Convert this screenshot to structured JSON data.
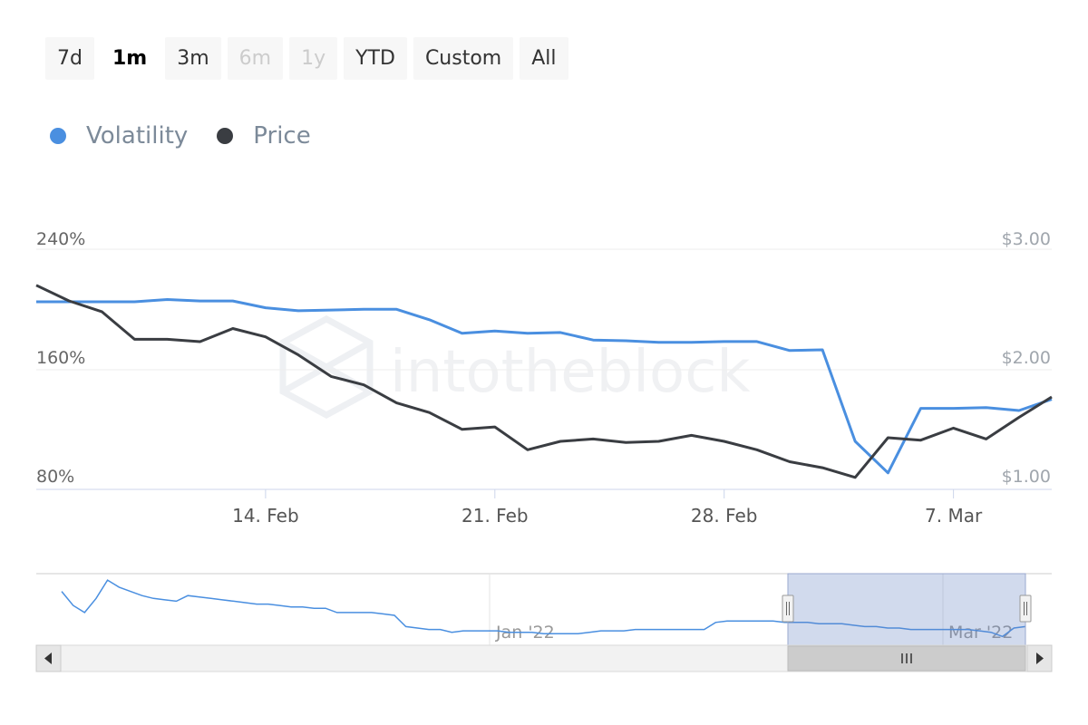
{
  "range_selector": {
    "buttons": [
      {
        "label": "7d",
        "state": "normal"
      },
      {
        "label": "1m",
        "state": "active"
      },
      {
        "label": "3m",
        "state": "normal"
      },
      {
        "label": "6m",
        "state": "disabled"
      },
      {
        "label": "1y",
        "state": "disabled"
      },
      {
        "label": "YTD",
        "state": "normal"
      },
      {
        "label": "Custom",
        "state": "normal"
      },
      {
        "label": "All",
        "state": "normal"
      }
    ]
  },
  "legend": [
    {
      "label": "Volatility",
      "color": "#4a8fe0"
    },
    {
      "label": "Price",
      "color": "#3a3d42"
    }
  ],
  "watermark": "intotheblock",
  "chart_data": {
    "type": "line",
    "x_axis": {
      "type": "datetime",
      "min": "2022-02-07",
      "max": "2022-03-10",
      "ticks": [
        {
          "date": "2022-02-14",
          "label": "14. Feb"
        },
        {
          "date": "2022-02-21",
          "label": "21. Feb"
        },
        {
          "date": "2022-02-28",
          "label": "28. Feb"
        },
        {
          "date": "2022-03-07",
          "label": "7. Mar"
        }
      ]
    },
    "y_left": {
      "min": 80,
      "max": 240,
      "ticks": [
        80,
        160,
        240
      ],
      "tick_labels": [
        "80%",
        "160%",
        "240%"
      ]
    },
    "y_right": {
      "min": 1,
      "max": 3,
      "ticks": [
        1,
        2,
        3
      ],
      "tick_labels": [
        "$1.00",
        "$2.00",
        "$3.00"
      ]
    },
    "grid": true,
    "legend_position": "top-left",
    "series": [
      {
        "name": "Volatility",
        "axis": "left",
        "color": "#4a8fe0",
        "points": [
          [
            "2022-02-07",
            205
          ],
          [
            "2022-02-10",
            205
          ],
          [
            "2022-02-11",
            206.5
          ],
          [
            "2022-02-12",
            205.5
          ],
          [
            "2022-02-13",
            205.5
          ],
          [
            "2022-02-14",
            201
          ],
          [
            "2022-02-15",
            199
          ],
          [
            "2022-02-16",
            199.5
          ],
          [
            "2022-02-17",
            200
          ],
          [
            "2022-02-18",
            200
          ],
          [
            "2022-02-19",
            193
          ],
          [
            "2022-02-20",
            184
          ],
          [
            "2022-02-21",
            185.5
          ],
          [
            "2022-02-22",
            184
          ],
          [
            "2022-02-23",
            184.5
          ],
          [
            "2022-02-24",
            179.5
          ],
          [
            "2022-02-25",
            179
          ],
          [
            "2022-02-26",
            178
          ],
          [
            "2022-02-27",
            178
          ],
          [
            "2022-02-28",
            178.5
          ],
          [
            "2022-03-01",
            178.5
          ],
          [
            "2022-03-02",
            172.5
          ],
          [
            "2022-03-03",
            173
          ],
          [
            "2022-03-04",
            112
          ],
          [
            "2022-03-05",
            91
          ],
          [
            "2022-03-06",
            134
          ],
          [
            "2022-03-07",
            134
          ],
          [
            "2022-03-08",
            134.5
          ],
          [
            "2022-03-09",
            132.5
          ],
          [
            "2022-03-10",
            140
          ]
        ]
      },
      {
        "name": "Price",
        "axis": "right",
        "color": "#3a3d42",
        "points": [
          [
            "2022-02-07",
            2.7
          ],
          [
            "2022-02-08",
            2.57
          ],
          [
            "2022-02-09",
            2.48
          ],
          [
            "2022-02-10",
            2.25
          ],
          [
            "2022-02-11",
            2.25
          ],
          [
            "2022-02-12",
            2.23
          ],
          [
            "2022-02-13",
            2.34
          ],
          [
            "2022-02-14",
            2.27
          ],
          [
            "2022-02-15",
            2.12
          ],
          [
            "2022-02-16",
            1.94
          ],
          [
            "2022-02-17",
            1.87
          ],
          [
            "2022-02-18",
            1.72
          ],
          [
            "2022-02-19",
            1.64
          ],
          [
            "2022-02-20",
            1.5
          ],
          [
            "2022-02-21",
            1.52
          ],
          [
            "2022-02-22",
            1.33
          ],
          [
            "2022-02-23",
            1.4
          ],
          [
            "2022-02-24",
            1.42
          ],
          [
            "2022-02-25",
            1.39
          ],
          [
            "2022-02-26",
            1.4
          ],
          [
            "2022-02-27",
            1.45
          ],
          [
            "2022-02-28",
            1.4
          ],
          [
            "2022-03-01",
            1.33
          ],
          [
            "2022-03-02",
            1.23
          ],
          [
            "2022-03-03",
            1.18
          ],
          [
            "2022-03-04",
            1.1
          ],
          [
            "2022-03-05",
            1.43
          ],
          [
            "2022-03-06",
            1.41
          ],
          [
            "2022-03-07",
            1.51
          ],
          [
            "2022-03-08",
            1.42
          ],
          [
            "2022-03-09",
            1.6
          ],
          [
            "2022-03-10",
            1.77
          ]
        ]
      }
    ]
  },
  "navigator": {
    "labels": [
      "Jan '22",
      "Mar '22"
    ],
    "series_values": [
      175,
      165,
      160,
      170,
      183,
      178,
      175,
      172,
      170,
      169,
      168,
      172,
      171,
      170,
      169,
      168,
      167,
      166,
      166,
      165,
      164,
      164,
      163,
      163,
      160,
      160,
      160,
      160,
      159,
      158,
      150,
      149,
      148,
      148,
      146,
      147,
      147,
      147,
      147,
      146,
      146,
      146,
      145,
      145,
      145,
      145,
      146,
      147,
      147,
      147,
      148,
      148,
      148,
      148,
      148,
      148,
      148,
      153,
      154,
      154,
      154,
      154,
      154,
      153,
      153,
      153,
      152,
      152,
      152,
      151,
      150,
      150,
      149,
      149,
      148,
      148,
      148,
      148,
      148,
      148,
      147,
      146,
      143,
      149,
      150
    ]
  }
}
